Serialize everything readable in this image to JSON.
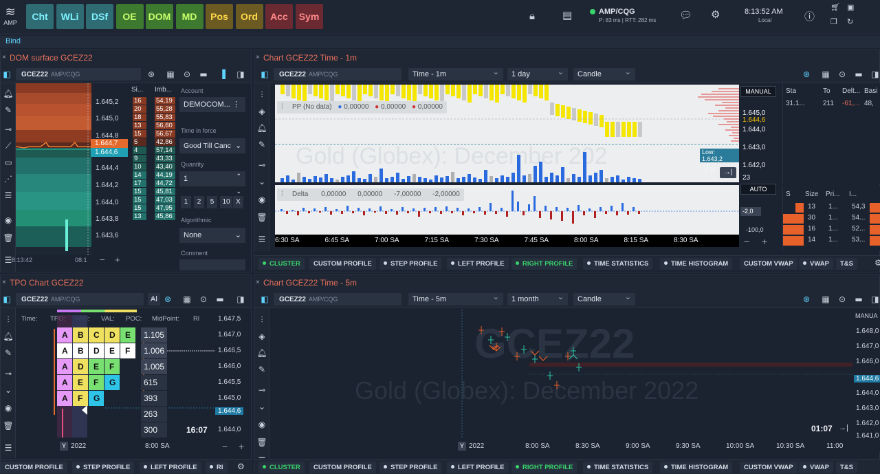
{
  "toolbar": {
    "buttons": [
      {
        "label": "Cht",
        "bg": "#2e6b72",
        "fg": "#7ff0ff"
      },
      {
        "label": "WLi",
        "bg": "#2e6b72",
        "fg": "#7ff0ff"
      },
      {
        "label": "DSf",
        "bg": "#2e6b72",
        "fg": "#7ff0ff"
      },
      {
        "label": "OE",
        "bg": "#3d7a2f",
        "fg": "#c8ff6a"
      },
      {
        "label": "DOM",
        "bg": "#3d7a2f",
        "fg": "#c8ff6a"
      },
      {
        "label": "MD",
        "bg": "#3d7a2f",
        "fg": "#c8ff6a"
      },
      {
        "label": "Pos",
        "bg": "#6b5a22",
        "fg": "#ffd84a"
      },
      {
        "label": "Ord",
        "bg": "#6b5a22",
        "fg": "#ffd84a"
      },
      {
        "label": "Acc",
        "bg": "#6b2a32",
        "fg": "#ff8a8a"
      },
      {
        "label": "Sym",
        "bg": "#6b2a32",
        "fg": "#ff8a8a"
      }
    ],
    "logo_text": "AMP",
    "connection": "AMP/CQG",
    "latency": "P: 83 ms | RTT: 282 ms",
    "time": "8:13:52 AM",
    "time_zone": "Local"
  },
  "bind_label": "Bind",
  "dom": {
    "title": "DOM surface GCEZ22",
    "symbol": "GCEZ22",
    "feed": "AMP/CQG",
    "prices": [
      "1.645,2",
      "1.645,0",
      "1.644,8",
      "1.644,6",
      "1.644,4",
      "1.644,2",
      "1.644,0",
      "1.643,8",
      "1.643,6"
    ],
    "ask_price": "1.644,7",
    "bid_price": "1.644,6",
    "col_size": "Si...",
    "col_imb": "Imb...",
    "sizes": [
      "16",
      "20",
      "18",
      "13",
      "15",
      "5",
      "4",
      "9",
      "10",
      "14",
      "17",
      "15",
      "15",
      "15",
      "13"
    ],
    "imbs": [
      "54,19",
      "55,28",
      "55,83",
      "56,60",
      "56,67",
      "42,86",
      "57,14",
      "43,33",
      "43,40",
      "44,19",
      "44,72",
      "45,81",
      "47,03",
      "47,95",
      "45,86"
    ],
    "time_left": "8:13:42",
    "time_right": "08:1",
    "account_label": "Account",
    "account_value": "DEMOCOM...",
    "tif_label": "Time in force",
    "tif_value": "Good Till Canc",
    "qty_label": "Quantity",
    "qty_value": "1",
    "qty_presets": [
      "1",
      "2",
      "5",
      "10",
      "X"
    ],
    "algo_label": "Algorithmic",
    "algo_value": "None",
    "comment_label": "Comment"
  },
  "chart1": {
    "title": "Chart GCEZ22 Time - 1m",
    "symbol": "GCEZ22",
    "feed": "AMP/CQG",
    "timeframe": "Time - 1m",
    "range": "1 day",
    "style": "Candle",
    "pp_label": "PP (No data)",
    "pp_values": [
      "0,00000",
      "0,00000",
      "0,00000"
    ],
    "watermark": "Gold (Globex): December 2022",
    "manual": "MANUAL",
    "auto": "AUTO",
    "price_labels": [
      "1.645,0",
      "1.644,6",
      "1.644,0",
      "1.643,0",
      "1.642,0",
      "23"
    ],
    "low_label": "Low: 1.643,2",
    "countdown": "7s",
    "delta_label": "Delta",
    "delta_values": [
      "0,00000",
      "0,00000",
      "-7,00000",
      "-2,00000"
    ],
    "delta_axis": [
      "-2,0",
      "-100,0"
    ],
    "time_labels": [
      "6:30 SA",
      "6:45 SA",
      "7:00 SA",
      "7:15 SA",
      "7:30 SA",
      "7:45 SA",
      "8:00 SA",
      "8:15 SA",
      "8:30 SA"
    ],
    "tabs": [
      "CLUSTER",
      "CUSTOM PROFILE",
      "STEP PROFILE",
      "LEFT PROFILE",
      "RIGHT PROFILE",
      "TIME STATISTICS",
      "TIME HISTOGRAM",
      "CUSTOM VWAP",
      "VWAP",
      "T&S"
    ]
  },
  "side_tables": {
    "top_headers": [
      "Sta",
      "To",
      "Delt...",
      "Basi"
    ],
    "top_row": [
      "31.1...",
      "211",
      "-61,...",
      "48,"
    ],
    "bottom_headers": [
      "S",
      "Size",
      "Pri...",
      "I..."
    ],
    "bottom_rows": [
      [
        "13",
        "1...",
        "54,3"
      ],
      [
        "30",
        "1...",
        "54..."
      ],
      [
        "16",
        "1...",
        "52..."
      ],
      [
        "14",
        "1...",
        "53..."
      ]
    ]
  },
  "tpo": {
    "title": "TPO Chart GCEZ22",
    "symbol": "GCEZ22",
    "feed": "AMP/CQG",
    "dd": "Al",
    "header": [
      "Time:",
      "TPO:",
      "VAH:",
      "VAL:",
      "POC:",
      "MidPoint:",
      "Rl"
    ],
    "rows": [
      [
        "A",
        "B",
        "C",
        "D",
        "E"
      ],
      [
        "A",
        "B",
        "D",
        "E",
        "F"
      ],
      [
        "A",
        "D",
        "E",
        "F"
      ],
      [
        "A",
        "E",
        "F",
        "G"
      ],
      [
        "A",
        "F",
        "G"
      ]
    ],
    "volumes": [
      "1.105",
      "1.006",
      "1.005",
      "615",
      "393",
      "263",
      "300"
    ],
    "prices": [
      "1.647,5",
      "1.647,0",
      "1.646,5",
      "1.646,0",
      "1.645,5",
      "1.645,0",
      "1.644,6",
      "1.644,0"
    ],
    "countdown": "16:07",
    "year": "2022",
    "time": "8:00 SA",
    "tabs": [
      "CUSTOM PROFILE",
      "STEP PROFILE",
      "LEFT PROFILE",
      "RI"
    ]
  },
  "chart2": {
    "title": "Chart GCEZ22 Time - 5m",
    "symbol": "GCEZ22",
    "feed": "AMP/CQG",
    "timeframe": "Time - 5m",
    "range": "1 month",
    "style": "Candle",
    "watermark_big": "GCEZ22",
    "watermark": "Gold (Globex): December 2022",
    "manual": "MANUA",
    "price_labels": [
      "1.648,0",
      "1.647,0",
      "1.646,0",
      "1.644,6",
      "1.644,0",
      "1.643,0",
      "1.642,0",
      "1.641,0"
    ],
    "countdown": "01:07",
    "year": "2022",
    "time_labels": [
      "8:00 SA",
      "8:30 SA",
      "9:00 SA",
      "9:30 SA",
      "10:00 SA",
      "10:30 SA",
      "11:00"
    ],
    "tabs": [
      "CLUSTER",
      "CUSTOM PROFILE",
      "STEP PROFILE",
      "LEFT PROFILE",
      "RIGHT PROFILE",
      "TIME STATISTICS",
      "TIME HISTOGRAM",
      "CUSTOM VWAP",
      "VWAP",
      "T&S"
    ]
  }
}
